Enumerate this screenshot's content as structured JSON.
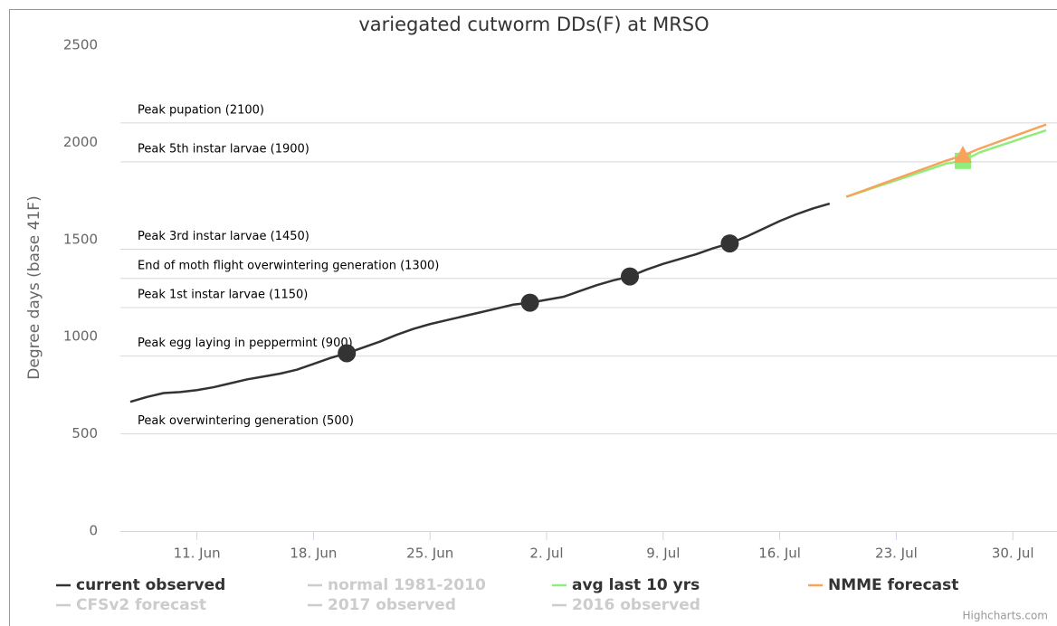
{
  "chart_data": {
    "type": "line",
    "title": "variegated cutworm DDs(F) at MRSO",
    "y_label": "Degree days (base 41F)",
    "credits": "Highcharts.com",
    "categories": [
      "7. Jun",
      "8. Jun",
      "9. Jun",
      "10. Jun",
      "11. Jun",
      "12. Jun",
      "13. Jun",
      "14. Jun",
      "15. Jun",
      "16. Jun",
      "17. Jun",
      "18. Jun",
      "19. Jun",
      "20. Jun",
      "21. Jun",
      "22. Jun",
      "23. Jun",
      "24. Jun",
      "25. Jun",
      "26. Jun",
      "27. Jun",
      "28. Jun",
      "29. Jun",
      "30. Jun",
      "1. Jul",
      "2. Jul",
      "3. Jul",
      "4. Jul",
      "5. Jul",
      "6. Jul",
      "7. Jul",
      "8. Jul",
      "9. Jul",
      "10. Jul",
      "11. Jul",
      "12. Jul",
      "13. Jul",
      "14. Jul",
      "15. Jul",
      "16. Jul",
      "17. Jul",
      "18. Jul",
      "19. Jul",
      "20. Jul",
      "21. Jul",
      "22. Jul",
      "23. Jul",
      "24. Jul",
      "25. Jul",
      "26. Jul",
      "27. Jul",
      "28. Jul",
      "29. Jul",
      "30. Jul",
      "31. Jul",
      "1. Aug"
    ],
    "xticks": [
      "11. Jun",
      "18. Jun",
      "25. Jun",
      "2. Jul",
      "9. Jul",
      "16. Jul",
      "23. Jul",
      "30. Jul"
    ],
    "ylim": [
      0,
      2500
    ],
    "yticks": [
      0,
      500,
      1000,
      1500,
      2000,
      2500
    ],
    "grid": false,
    "plot_lines": [
      {
        "value": 2100,
        "label": "Peak pupation (2100)"
      },
      {
        "value": 1900,
        "label": "Peak 5th instar larvae (1900)"
      },
      {
        "value": 1450,
        "label": "Peak 3rd instar larvae (1450)"
      },
      {
        "value": 1300,
        "label": "End of moth flight overwintering generation (1300)"
      },
      {
        "value": 1150,
        "label": "Peak 1st instar larvae (1150)"
      },
      {
        "value": 900,
        "label": "Peak egg laying in peppermint (900)"
      },
      {
        "value": 500,
        "label": "Peak overwintering generation (500)"
      }
    ],
    "series": [
      {
        "name": "current observed",
        "color": "#333333",
        "visible": true,
        "marker_symbol": "circle",
        "markers": [
          13,
          24,
          30,
          36
        ],
        "values": [
          665,
          690,
          710,
          715,
          725,
          740,
          760,
          780,
          795,
          810,
          830,
          860,
          890,
          915,
          945,
          975,
          1010,
          1040,
          1065,
          1085,
          1105,
          1125,
          1145,
          1165,
          1175,
          1190,
          1205,
          1235,
          1265,
          1290,
          1310,
          1345,
          1375,
          1400,
          1425,
          1455,
          1480,
          1515,
          1555,
          1595,
          1630,
          1660,
          1685,
          null,
          null,
          null,
          null,
          null,
          null,
          null,
          null,
          null,
          null,
          null,
          null,
          null
        ]
      },
      {
        "name": "normal 1981-2010",
        "color": "#cccccc",
        "visible": false
      },
      {
        "name": "avg last 10 yrs",
        "color": "#90ed7d",
        "visible": true,
        "marker_symbol": "square",
        "markers": [
          50
        ],
        "values": [
          null,
          null,
          null,
          null,
          null,
          null,
          null,
          null,
          null,
          null,
          null,
          null,
          null,
          null,
          null,
          null,
          null,
          null,
          null,
          null,
          null,
          null,
          null,
          null,
          null,
          null,
          null,
          null,
          null,
          null,
          null,
          null,
          null,
          null,
          null,
          null,
          null,
          null,
          null,
          null,
          null,
          null,
          null,
          1720,
          1748,
          1777,
          1805,
          1834,
          1862,
          1891,
          1905,
          1948,
          1977,
          2005,
          2034,
          2062
        ]
      },
      {
        "name": "NMME forecast",
        "color": "#f7a35c",
        "visible": true,
        "marker_symbol": "triangle",
        "markers": [
          50
        ],
        "values": [
          null,
          null,
          null,
          null,
          null,
          null,
          null,
          null,
          null,
          null,
          null,
          null,
          null,
          null,
          null,
          null,
          null,
          null,
          null,
          null,
          null,
          null,
          null,
          null,
          null,
          null,
          null,
          null,
          null,
          null,
          null,
          null,
          null,
          null,
          null,
          null,
          null,
          null,
          null,
          null,
          null,
          null,
          null,
          1720,
          1751,
          1782,
          1813,
          1844,
          1875,
          1906,
          1932,
          1968,
          1999,
          2030,
          2061,
          2092
        ]
      },
      {
        "name": "CFSv2 forecast",
        "color": "#cccccc",
        "visible": false
      },
      {
        "name": "2017 observed",
        "color": "#cccccc",
        "visible": false
      },
      {
        "name": "2016 observed",
        "color": "#cccccc",
        "visible": false
      }
    ]
  }
}
